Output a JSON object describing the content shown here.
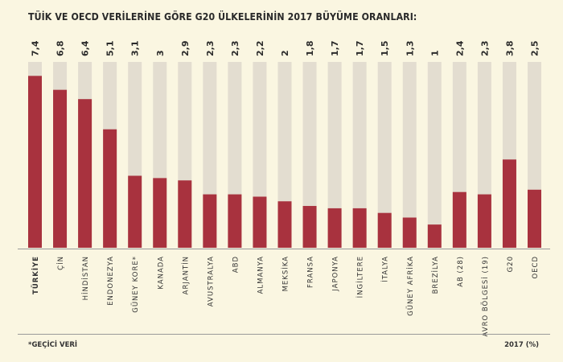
{
  "chart_data": {
    "type": "bar",
    "title": "TÜİK VE OECD VERİLERİNE GÖRE G20 ÜLKELERİNİN 2017 BÜYÜME ORANLARI:",
    "categories": [
      "TÜRKİYE",
      "ÇİN",
      "HİNDİSTAN",
      "ENDONEZYA",
      "GÜNEY KORE*",
      "KANADA",
      "ARJANTİN",
      "AVUSTRALYA",
      "ABD",
      "ALMANYA",
      "MEKSİKA",
      "FRANSA",
      "JAPONYA",
      "İNGİLTERE",
      "İTALYA",
      "GÜNEY AFRİKA",
      "BREZİLYA",
      "AB (28)",
      "AVRO BÖLGESİ (19)",
      "G20",
      "OECD"
    ],
    "values": [
      7.4,
      6.8,
      6.4,
      5.1,
      3.1,
      3,
      2.9,
      2.3,
      2.3,
      2.2,
      2,
      1.8,
      1.7,
      1.7,
      1.5,
      1.3,
      1,
      2.4,
      2.3,
      3.8,
      2.5
    ],
    "value_labels": [
      "7,4",
      "6,8",
      "6,4",
      "5,1",
      "3,1",
      "3",
      "2,9",
      "2,3",
      "2,3",
      "2,2",
      "2",
      "1,8",
      "1,7",
      "1,7",
      "1,5",
      "1,3",
      "1",
      "2,4",
      "2,3",
      "3,8",
      "2,5"
    ],
    "ylim": [
      0,
      8
    ],
    "grid": false,
    "unit_label": "2017 (%)",
    "footnote": "*GEÇİCİ VERİ",
    "colors": {
      "bar": "#a8323e",
      "track": "#e3ddd0",
      "background": "#faf6e1"
    }
  }
}
